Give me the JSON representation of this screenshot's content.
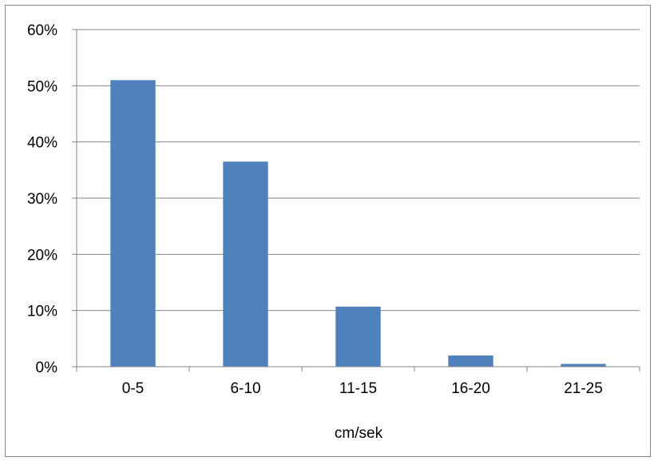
{
  "chart_data": {
    "type": "bar",
    "title": "",
    "xlabel": "cm/sek",
    "ylabel": "",
    "categories": [
      "0-5",
      "6-10",
      "11-15",
      "16-20",
      "21-25"
    ],
    "values": [
      51,
      36.5,
      10.7,
      2,
      0.5
    ],
    "ylim": [
      0,
      60
    ],
    "y_ticks": [
      0,
      10,
      20,
      30,
      40,
      50,
      60
    ],
    "y_tick_labels": [
      "0%",
      "10%",
      "20%",
      "30%",
      "40%",
      "50%",
      "60%"
    ],
    "grid": true,
    "legend": "none",
    "bar_color": "#4F81BD",
    "grid_color": "#868686"
  }
}
